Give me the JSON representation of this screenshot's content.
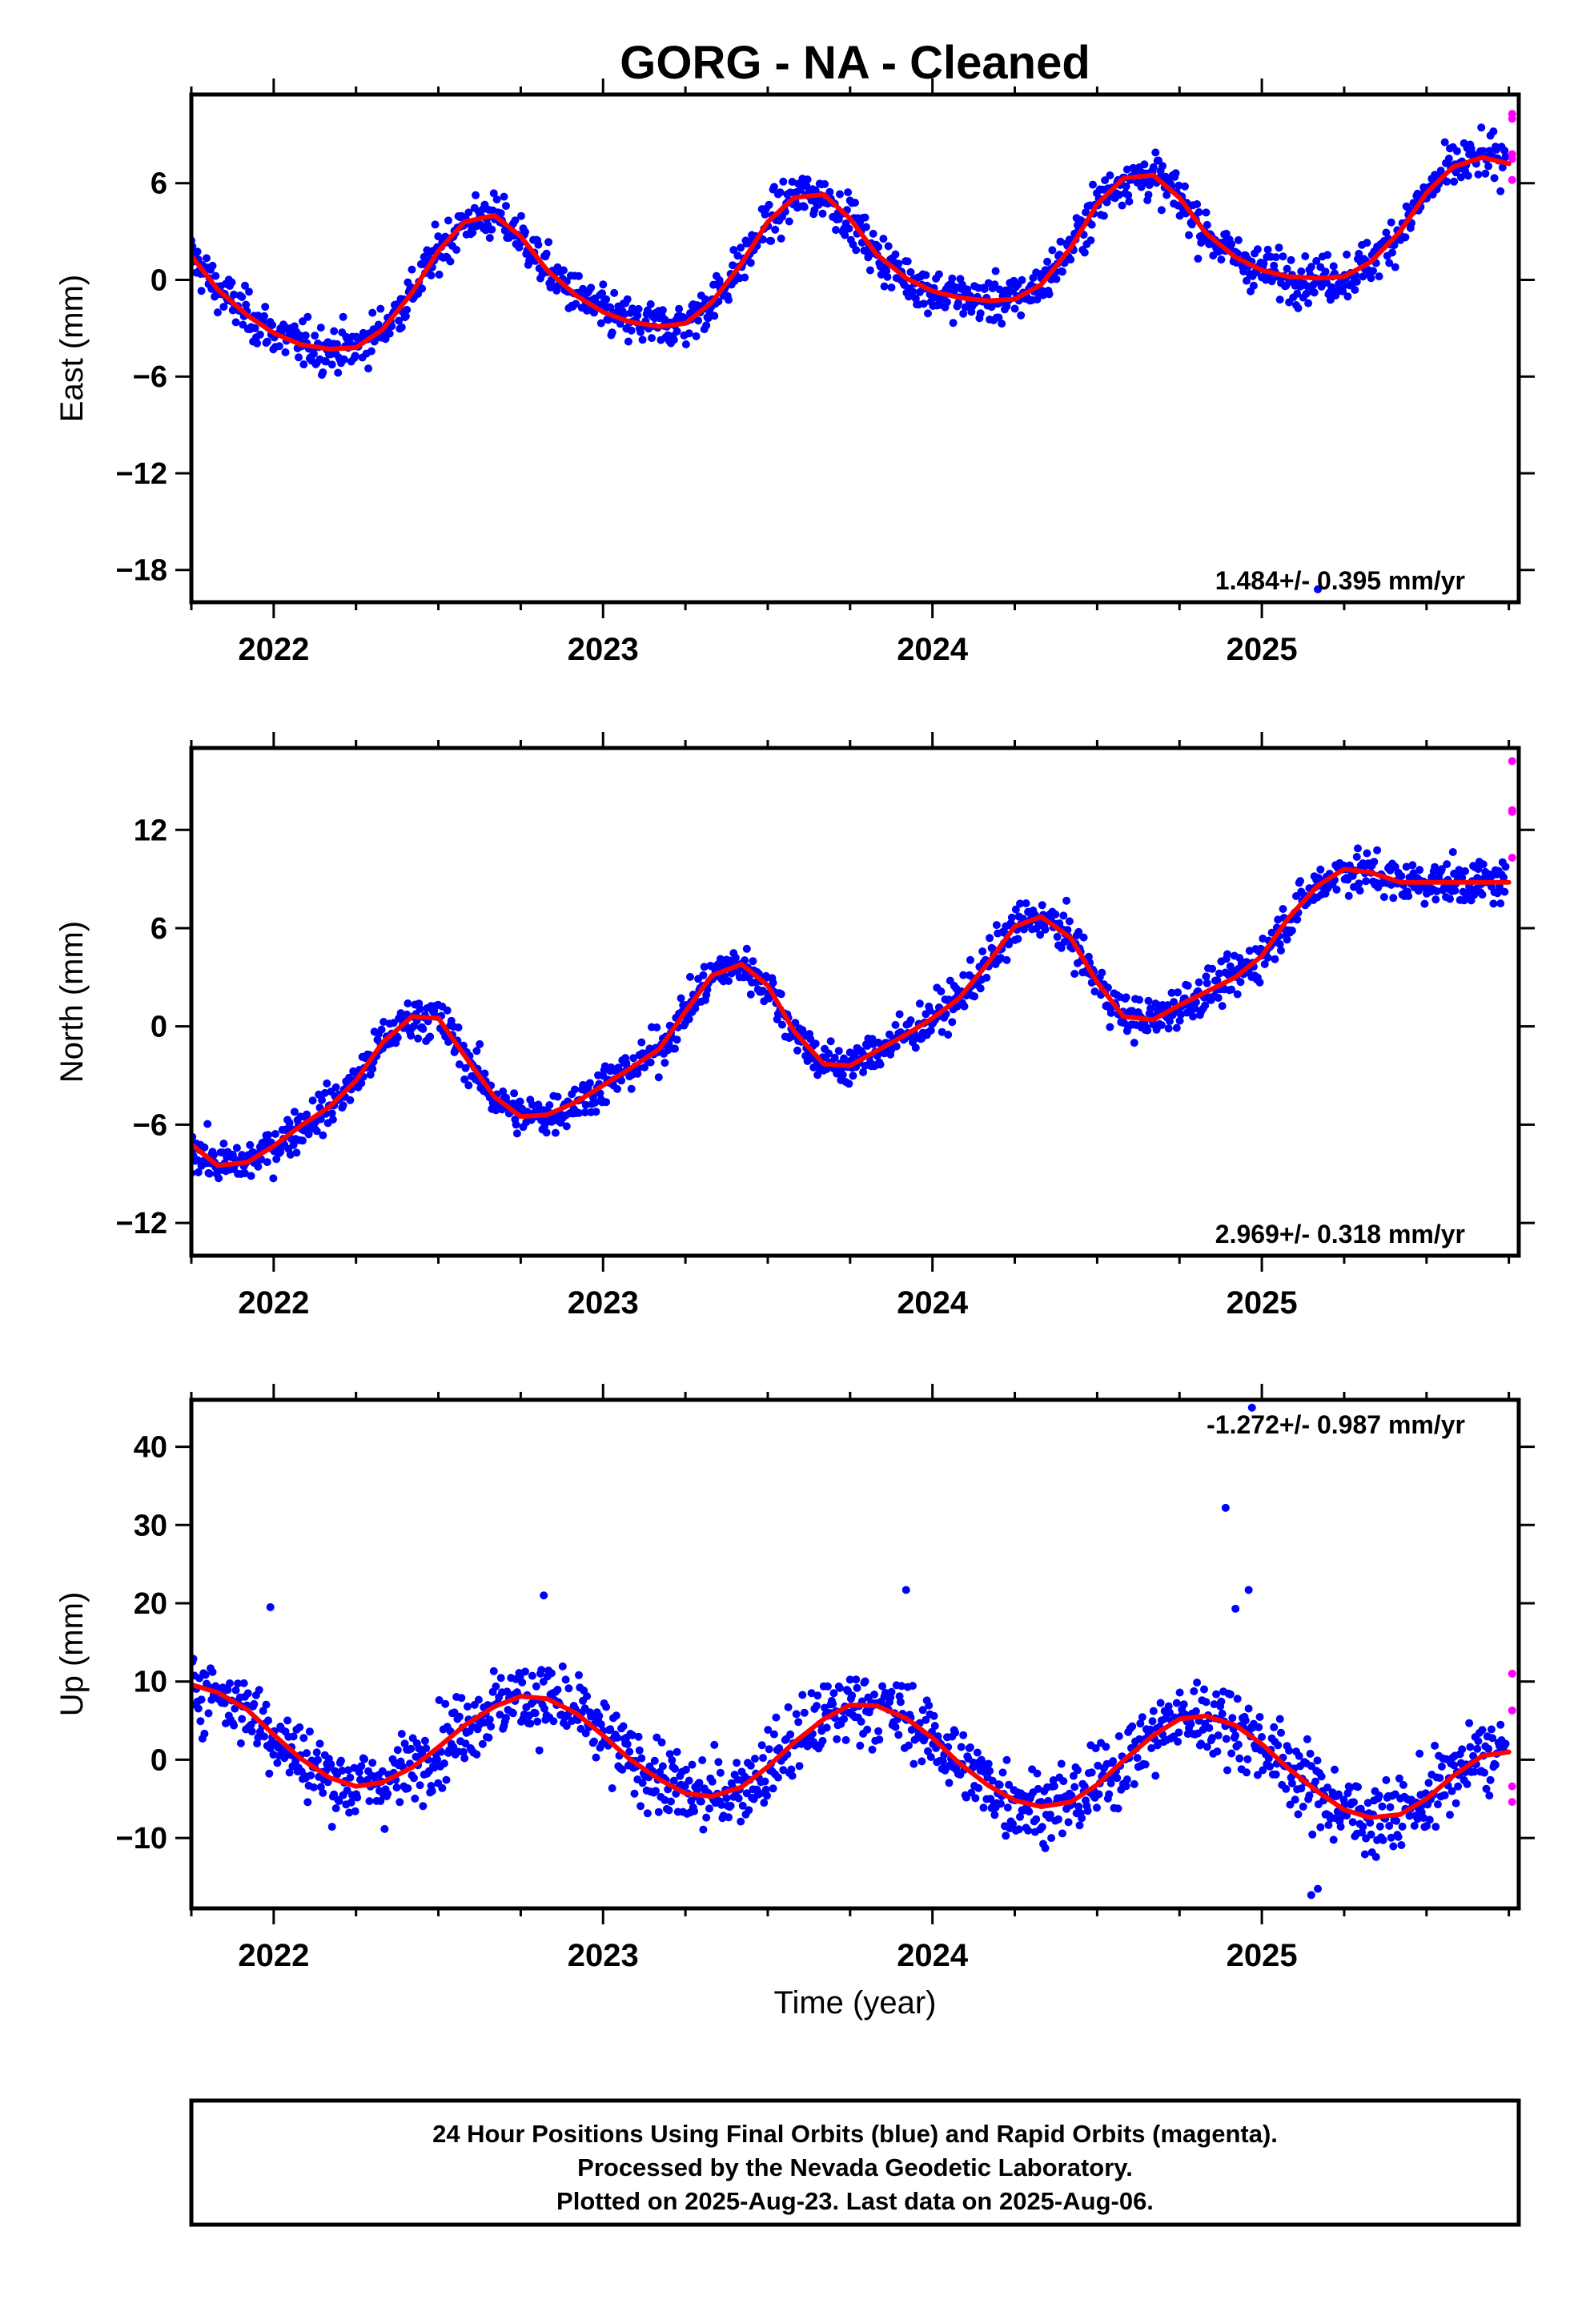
{
  "colors": {
    "final": "#0000ff",
    "rapid": "#ff00ff",
    "model": "#ff0000",
    "frame": "#000000"
  },
  "chart_data": {
    "type": "scatter",
    "title": "GORG  - NA - Cleaned",
    "xlabel": "Time (year)",
    "xlim": [
      2021.75,
      2025.78
    ],
    "xticks": [
      "2022",
      "2023",
      "2024",
      "2025"
    ],
    "panels": [
      {
        "ylabel": "East (mm)",
        "ylim": [
          -20,
          11.5
        ],
        "yticks": [
          "6",
          "0",
          "−6",
          "−12",
          "−18"
        ],
        "rate": "1.484+/- 0.395 mm/yr",
        "rate_position": "bottom-right",
        "model": {
          "name": "model fit",
          "x": [
            2021.75,
            2021.83,
            2021.92,
            2022.0,
            2022.08,
            2022.17,
            2022.25,
            2022.33,
            2022.42,
            2022.5,
            2022.58,
            2022.67,
            2022.75,
            2022.83,
            2022.92,
            2023.0,
            2023.08,
            2023.17,
            2023.25,
            2023.33,
            2023.42,
            2023.5,
            2023.58,
            2023.67,
            2023.75,
            2023.83,
            2023.92,
            2024.0,
            2024.08,
            2024.17,
            2024.25,
            2024.33,
            2024.42,
            2024.5,
            2024.58,
            2024.67,
            2024.75,
            2024.83,
            2024.92,
            2025.0,
            2025.08,
            2025.17,
            2025.25,
            2025.33,
            2025.42,
            2025.5,
            2025.58,
            2025.67,
            2025.75
          ],
          "y": [
            1.5,
            -0.6,
            -2.2,
            -3.3,
            -4.0,
            -4.3,
            -4.2,
            -3.1,
            -0.8,
            1.8,
            3.6,
            4.0,
            2.7,
            0.6,
            -1.0,
            -2.0,
            -2.6,
            -2.9,
            -2.7,
            -1.4,
            1.0,
            3.6,
            5.1,
            5.3,
            3.8,
            1.6,
            0.1,
            -0.7,
            -1.1,
            -1.3,
            -1.2,
            -0.3,
            2.0,
            4.7,
            6.3,
            6.5,
            5.1,
            2.9,
            1.4,
            0.6,
            0.2,
            0.1,
            0.2,
            1.1,
            3.0,
            5.4,
            7.0,
            7.6,
            7.2
          ]
        },
        "final_count": 1300,
        "final_noise_mm": 1.2,
        "rapid": {
          "x": [
            2025.76,
            2025.76,
            2025.76,
            2025.76,
            2025.76
          ],
          "y": [
            10.3,
            10.0,
            7.8,
            7.5,
            6.2
          ]
        },
        "outliers": {
          "x": [
            2025.17
          ],
          "y": [
            -19.2
          ]
        }
      },
      {
        "ylabel": "North (mm)",
        "ylim": [
          -14,
          17
        ],
        "yticks": [
          "12",
          "6",
          "0",
          "−6",
          "−12"
        ],
        "rate": "2.969+/- 0.318 mm/yr",
        "rate_position": "bottom-right",
        "model": {
          "name": "model fit",
          "x": [
            2021.75,
            2021.83,
            2021.92,
            2022.0,
            2022.08,
            2022.17,
            2022.25,
            2022.33,
            2022.42,
            2022.5,
            2022.58,
            2022.67,
            2022.75,
            2022.83,
            2022.92,
            2023.0,
            2023.08,
            2023.17,
            2023.25,
            2023.33,
            2023.42,
            2023.5,
            2023.58,
            2023.67,
            2023.75,
            2023.83,
            2023.92,
            2024.0,
            2024.08,
            2024.17,
            2024.25,
            2024.33,
            2024.42,
            2024.5,
            2024.58,
            2024.67,
            2024.75,
            2024.83,
            2024.92,
            2025.0,
            2025.08,
            2025.17,
            2025.25,
            2025.33,
            2025.42,
            2025.5,
            2025.58,
            2025.67,
            2025.75
          ],
          "y": [
            -7.2,
            -8.5,
            -8.3,
            -7.3,
            -6.1,
            -4.9,
            -3.3,
            -1.0,
            0.6,
            0.5,
            -1.8,
            -4.3,
            -5.5,
            -5.4,
            -4.6,
            -3.6,
            -2.6,
            -1.4,
            0.9,
            3.1,
            3.8,
            2.5,
            -0.3,
            -2.3,
            -2.4,
            -1.5,
            -0.5,
            0.5,
            1.7,
            3.9,
            6.1,
            6.7,
            5.4,
            2.7,
            0.6,
            0.4,
            1.3,
            2.1,
            3.0,
            4.3,
            6.6,
            8.6,
            9.6,
            9.4,
            8.8,
            8.8,
            8.8,
            8.8,
            8.8
          ]
        },
        "final_count": 1300,
        "final_noise_mm": 1.1,
        "rapid": {
          "x": [
            2025.76,
            2025.76,
            2025.76,
            2025.76
          ],
          "y": [
            16.2,
            13.2,
            13.1,
            10.3
          ]
        },
        "outliers": {
          "x": [],
          "y": []
        }
      },
      {
        "ylabel": "Up (mm)",
        "ylim": [
          -19,
          46
        ],
        "yticks": [
          "40",
          "30",
          "20",
          "10",
          "0",
          "−10"
        ],
        "rate": "-1.272+/- 0.987 mm/yr",
        "rate_position": "top-right",
        "model": {
          "name": "model fit",
          "x": [
            2021.75,
            2021.83,
            2021.92,
            2022.0,
            2022.08,
            2022.17,
            2022.25,
            2022.33,
            2022.42,
            2022.5,
            2022.58,
            2022.67,
            2022.75,
            2022.83,
            2022.92,
            2023.0,
            2023.08,
            2023.17,
            2023.25,
            2023.33,
            2023.42,
            2023.5,
            2023.58,
            2023.67,
            2023.75,
            2023.83,
            2023.92,
            2024.0,
            2024.08,
            2024.17,
            2024.25,
            2024.33,
            2024.42,
            2024.5,
            2024.58,
            2024.67,
            2024.75,
            2024.83,
            2024.92,
            2025.0,
            2025.08,
            2025.17,
            2025.25,
            2025.33,
            2025.42,
            2025.5,
            2025.58,
            2025.67,
            2025.75
          ],
          "y": [
            9.6,
            8.6,
            6.4,
            3.2,
            0.2,
            -2.3,
            -3.4,
            -2.9,
            -1.0,
            1.6,
            4.4,
            6.8,
            8.1,
            7.8,
            5.9,
            3.1,
            0.1,
            -2.5,
            -4.3,
            -4.7,
            -3.5,
            -0.9,
            2.2,
            5.2,
            7.0,
            6.9,
            5.3,
            2.8,
            -0.4,
            -3.3,
            -5.2,
            -6.0,
            -5.4,
            -3.2,
            -0.1,
            3.1,
            5.2,
            5.6,
            4.4,
            2.0,
            -1.1,
            -4.1,
            -6.4,
            -7.4,
            -7.0,
            -5.0,
            -2.1,
            0.5,
            1.0
          ]
        },
        "final_count": 1300,
        "final_noise_mm": 4.0,
        "rapid": {
          "x": [
            2025.76,
            2025.76,
            2025.76,
            2025.76
          ],
          "y": [
            11.0,
            6.3,
            -3.4,
            -5.4
          ]
        },
        "outliers": {
          "x": [
            2024.97,
            2024.89,
            2024.96,
            2024.92,
            2023.92,
            2022.82,
            2021.99,
            2025.15,
            2025.17
          ],
          "y": [
            45.0,
            32.2,
            21.7,
            19.3,
            21.7,
            21.0,
            19.5,
            -17.3,
            -16.5
          ]
        }
      }
    ]
  },
  "footer": {
    "line1": "24 Hour Positions Using Final Orbits (blue) and Rapid Orbits (magenta).",
    "line2": "Processed by the Nevada Geodetic Laboratory.",
    "line3": "Plotted on 2025-Aug-23. Last data on 2025-Aug-06."
  }
}
